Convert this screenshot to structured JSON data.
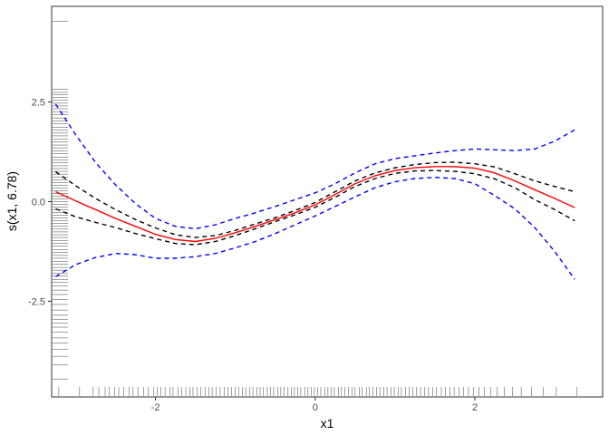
{
  "chart_data": {
    "type": "line",
    "title": "",
    "xlabel": "x1",
    "ylabel": "s(x1, 6.78)",
    "xlim": [
      -3.3,
      3.6
    ],
    "ylim": [
      -4.9,
      4.9
    ],
    "grid": false,
    "x_ticks": [
      -2,
      0,
      2
    ],
    "y_ticks": [
      -2.5,
      0.0,
      2.5
    ],
    "x_tick_labels": [
      "-2",
      "0",
      "2"
    ],
    "y_tick_labels": [
      "-2.5",
      "0.0",
      "2.5"
    ],
    "colors": {
      "fit": "#ff0000",
      "ci": "#000000",
      "band": "#0000ff",
      "rug": "#000000"
    },
    "x": [
      -3.25,
      -3.0,
      -2.75,
      -2.5,
      -2.25,
      -2.0,
      -1.75,
      -1.5,
      -1.25,
      -1.0,
      -0.75,
      -0.5,
      -0.25,
      0.0,
      0.25,
      0.5,
      0.75,
      1.0,
      1.25,
      1.5,
      1.75,
      2.0,
      2.25,
      2.5,
      2.75,
      3.0,
      3.25
    ],
    "series": [
      {
        "name": "fit",
        "style": "solid",
        "values": [
          0.25,
          0.02,
          -0.2,
          -0.42,
          -0.62,
          -0.82,
          -0.95,
          -1.0,
          -0.92,
          -0.78,
          -0.62,
          -0.45,
          -0.28,
          -0.08,
          0.18,
          0.45,
          0.65,
          0.78,
          0.85,
          0.88,
          0.88,
          0.84,
          0.72,
          0.52,
          0.3,
          0.08,
          -0.15
        ]
      },
      {
        "name": "upper CI",
        "style": "dashed",
        "values": [
          0.75,
          0.4,
          0.08,
          -0.2,
          -0.45,
          -0.66,
          -0.83,
          -0.9,
          -0.85,
          -0.72,
          -0.56,
          -0.4,
          -0.22,
          -0.02,
          0.25,
          0.52,
          0.72,
          0.85,
          0.93,
          0.98,
          0.99,
          0.95,
          0.87,
          0.7,
          0.52,
          0.38,
          0.25
        ]
      },
      {
        "name": "lower CI",
        "style": "dashed",
        "values": [
          -0.18,
          -0.38,
          -0.52,
          -0.65,
          -0.8,
          -0.93,
          -1.05,
          -1.08,
          -1.0,
          -0.85,
          -0.68,
          -0.5,
          -0.33,
          -0.14,
          0.11,
          0.38,
          0.58,
          0.71,
          0.77,
          0.78,
          0.76,
          0.7,
          0.57,
          0.35,
          0.05,
          -0.2,
          -0.48
        ]
      },
      {
        "name": "upper band",
        "style": "dashed",
        "values": [
          2.45,
          1.68,
          0.98,
          0.42,
          -0.05,
          -0.42,
          -0.62,
          -0.68,
          -0.58,
          -0.42,
          -0.28,
          -0.12,
          0.05,
          0.22,
          0.45,
          0.72,
          0.95,
          1.08,
          1.15,
          1.22,
          1.28,
          1.32,
          1.3,
          1.28,
          1.32,
          1.52,
          1.8
        ]
      },
      {
        "name": "lower band",
        "style": "dashed",
        "values": [
          -1.88,
          -1.58,
          -1.4,
          -1.3,
          -1.33,
          -1.42,
          -1.42,
          -1.38,
          -1.3,
          -1.16,
          -1.0,
          -0.8,
          -0.58,
          -0.36,
          -0.12,
          0.12,
          0.35,
          0.5,
          0.58,
          0.61,
          0.58,
          0.45,
          0.15,
          -0.18,
          -0.65,
          -1.25,
          -1.95
        ]
      }
    ],
    "rug_x": [
      -3.21,
      -2.95,
      -2.78,
      -2.71,
      -2.63,
      -2.58,
      -2.51,
      -2.46,
      -2.4,
      -2.33,
      -2.28,
      -2.22,
      -2.15,
      -2.09,
      -2.02,
      -1.98,
      -1.93,
      -1.88,
      -1.82,
      -1.78,
      -1.72,
      -1.67,
      -1.62,
      -1.57,
      -1.53,
      -1.48,
      -1.43,
      -1.38,
      -1.33,
      -1.29,
      -1.24,
      -1.19,
      -1.14,
      -1.09,
      -1.05,
      -1.0,
      -0.96,
      -0.91,
      -0.87,
      -0.82,
      -0.78,
      -0.73,
      -0.69,
      -0.65,
      -0.6,
      -0.56,
      -0.52,
      -0.47,
      -0.43,
      -0.39,
      -0.34,
      -0.3,
      -0.26,
      -0.22,
      -0.18,
      -0.13,
      -0.09,
      -0.05,
      -0.01,
      0.03,
      0.07,
      0.12,
      0.16,
      0.2,
      0.24,
      0.29,
      0.33,
      0.37,
      0.42,
      0.46,
      0.5,
      0.55,
      0.59,
      0.64,
      0.68,
      0.72,
      0.77,
      0.81,
      0.86,
      0.9,
      0.95,
      0.99,
      1.04,
      1.08,
      1.13,
      1.18,
      1.22,
      1.27,
      1.32,
      1.37,
      1.42,
      1.47,
      1.52,
      1.58,
      1.63,
      1.69,
      1.74,
      1.8,
      1.86,
      1.92,
      1.98,
      2.05,
      2.12,
      2.2,
      2.28,
      2.37,
      2.47,
      2.58,
      2.71,
      2.86,
      3.02,
      3.28
    ],
    "rug_y": [
      4.52,
      2.82,
      2.74,
      2.68,
      2.61,
      2.55,
      2.47,
      2.4,
      2.33,
      2.25,
      2.18,
      2.1,
      2.02,
      1.95,
      1.87,
      1.8,
      1.72,
      1.65,
      1.57,
      1.5,
      1.42,
      1.35,
      1.27,
      1.2,
      1.12,
      1.05,
      0.98,
      0.9,
      0.83,
      0.76,
      0.69,
      0.62,
      0.55,
      0.48,
      0.41,
      0.34,
      0.27,
      0.2,
      0.14,
      0.07,
      0.0,
      -0.07,
      -0.14,
      -0.2,
      -0.27,
      -0.34,
      -0.41,
      -0.48,
      -0.55,
      -0.62,
      -0.69,
      -0.76,
      -0.83,
      -0.9,
      -0.98,
      -1.05,
      -1.12,
      -1.2,
      -1.27,
      -1.35,
      -1.42,
      -1.5,
      -1.57,
      -1.65,
      -1.72,
      -1.8,
      -1.87,
      -1.95,
      -2.03,
      -2.12,
      -2.22,
      -2.33,
      -2.45,
      -2.58,
      -2.72,
      -2.85,
      -2.95,
      -3.05,
      -3.15,
      -3.28,
      -3.42,
      -3.55,
      -3.7,
      -3.88,
      -4.1,
      -4.45
    ]
  }
}
